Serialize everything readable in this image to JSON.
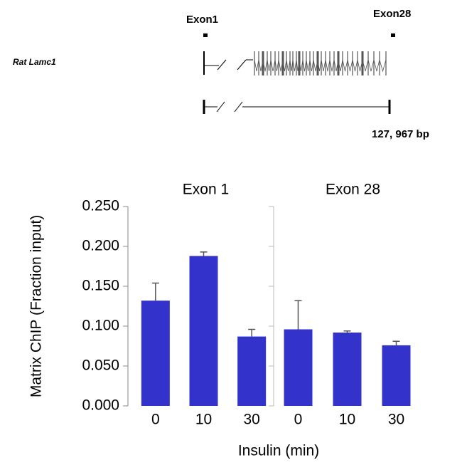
{
  "gene_diagram": {
    "exon1_label": "Exon1",
    "exon28_label": "Exon28",
    "gene_name": "Rat Lamc1",
    "length_label": "127, 967 bp"
  },
  "chart_data": [
    {
      "type": "bar",
      "title": "Exon 1",
      "ylabel": "Matrix ChIP (Fraction input)",
      "xlabel": "Insulin (min)",
      "categories": [
        "0",
        "10",
        "30"
      ],
      "values": [
        0.132,
        0.188,
        0.087
      ],
      "errors": [
        0.022,
        0.005,
        0.009
      ],
      "color": "#3333cc",
      "ylim": [
        0,
        0.25
      ],
      "yticks": [
        {
          "value": 0,
          "label": "0.000"
        },
        {
          "value": 0.05,
          "label": "0.050"
        },
        {
          "value": 0.1,
          "label": "0.100"
        },
        {
          "value": 0.15,
          "label": "0.150"
        },
        {
          "value": 0.2,
          "label": "0.200"
        },
        {
          "value": 0.25,
          "label": "0.250"
        }
      ]
    },
    {
      "type": "bar",
      "title": "Exon 28",
      "categories": [
        "0",
        "10",
        "30"
      ],
      "values": [
        0.096,
        0.092,
        0.076
      ],
      "errors": [
        0.036,
        0.002,
        0.005
      ],
      "color": "#3333cc",
      "ylim": [
        0,
        0.25
      ],
      "yticks": [
        0,
        0.05,
        0.1,
        0.15,
        0.2,
        0.25
      ]
    }
  ]
}
